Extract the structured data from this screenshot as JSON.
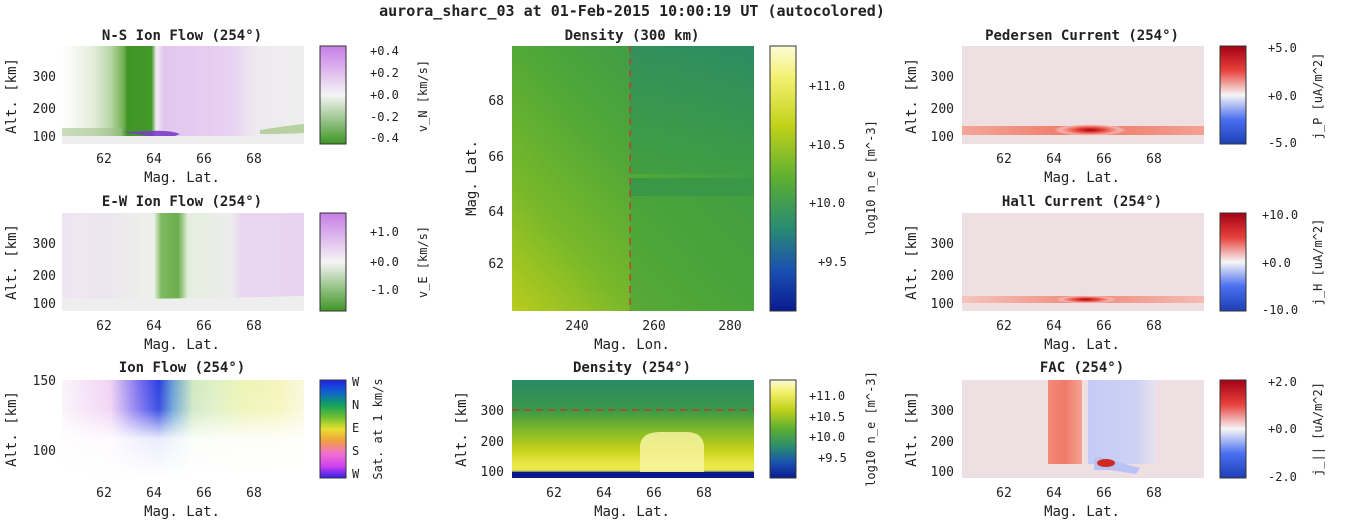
{
  "figure_title": "aurora_sharc_03 at 01-Feb-2015 10:00:19 UT (autocolored)",
  "colors": {
    "purple": "#c77de6",
    "green": "#3f9524",
    "red": "#a50015",
    "blue": "#1d3fb5",
    "yellow": "#f7f5b5"
  },
  "panels": {
    "ns_flow": {
      "title": "N-S Ion Flow (254°)",
      "xlabel": "Mag. Lat.",
      "ylabel": "Alt. [km]",
      "xticks": [
        "62",
        "64",
        "66",
        "68"
      ],
      "yticks": [
        "300",
        "200",
        "100"
      ],
      "cb_ticks": [
        "+0.4",
        "+0.2",
        "+0.0",
        "-0.2",
        "-0.4"
      ],
      "cb_label": "v_N [km/s]"
    },
    "ew_flow": {
      "title": "E-W Ion Flow (254°)",
      "xlabel": "Mag. Lat.",
      "ylabel": "Alt. [km]",
      "xticks": [
        "62",
        "64",
        "66",
        "68"
      ],
      "yticks": [
        "300",
        "200",
        "100"
      ],
      "cb_ticks": [
        "+1.0",
        "+0.0",
        "-1.0"
      ],
      "cb_label": "v_E [km/s]"
    },
    "ion_flow": {
      "title": "Ion Flow (254°)",
      "xlabel": "Mag. Lat.",
      "ylabel": "Alt. [km]",
      "xticks": [
        "62",
        "64",
        "66",
        "68"
      ],
      "yticks": [
        "150",
        "100"
      ],
      "cb_ticks": [
        "W",
        "N",
        "E",
        "S",
        "W"
      ],
      "cb_label": "Sat. at 1 km/s"
    },
    "density_map": {
      "title": "Density (300 km)",
      "xlabel": "Mag. Lon.",
      "ylabel": "Mag. Lat.",
      "xticks": [
        "240",
        "260",
        "280"
      ],
      "yticks": [
        "68",
        "66",
        "64",
        "62"
      ],
      "cb_ticks": [
        "+11.0",
        "+10.5",
        "+10.0",
        "+9.5"
      ],
      "cb_label": "log10 n_e [m^-3]"
    },
    "density_alt": {
      "title": "Density (254°)",
      "xlabel": "Mag. Lat.",
      "ylabel": "Alt. [km]",
      "xticks": [
        "62",
        "64",
        "66",
        "68"
      ],
      "yticks": [
        "300",
        "200",
        "100"
      ],
      "cb_ticks": [
        "+11.0",
        "+10.5",
        "+10.0",
        "+9.5"
      ],
      "cb_label": "log10 n_e [m^-3]"
    },
    "pedersen": {
      "title": "Pedersen Current (254°)",
      "xlabel": "Mag. Lat.",
      "ylabel": "Alt. [km]",
      "xticks": [
        "62",
        "64",
        "66",
        "68"
      ],
      "yticks": [
        "300",
        "200",
        "100"
      ],
      "cb_ticks": [
        "+5.0",
        "+0.0",
        "-5.0"
      ],
      "cb_label": "j_P [uA/m^2]"
    },
    "hall": {
      "title": "Hall Current (254°)",
      "xlabel": "Mag. Lat.",
      "ylabel": "Alt. [km]",
      "xticks": [
        "62",
        "64",
        "66",
        "68"
      ],
      "yticks": [
        "300",
        "200",
        "100"
      ],
      "cb_ticks": [
        "+10.0",
        "+0.0",
        "-10.0"
      ],
      "cb_label": "j_H [uA/m^2]"
    },
    "fac": {
      "title": "FAC (254°)",
      "xlabel": "Mag. Lat.",
      "ylabel": "Alt. [km]",
      "xticks": [
        "62",
        "64",
        "66",
        "68"
      ],
      "yticks": [
        "300",
        "200",
        "100"
      ],
      "cb_ticks": [
        "+2.0",
        "+0.0",
        "-2.0"
      ],
      "cb_label": "j_|| [uA/m^2]"
    }
  },
  "chart_data": [
    {
      "type": "heatmap",
      "title": "N-S Ion Flow (254°)",
      "xlabel": "Mag. Lat.",
      "ylabel": "Alt. [km]",
      "xlim": [
        60.2,
        70.0
      ],
      "ylim": [
        80,
        400
      ],
      "clim": [
        -0.4,
        0.4
      ],
      "colorbar_label": "v_N [km/s]"
    },
    {
      "type": "heatmap",
      "title": "E-W Ion Flow (254°)",
      "xlabel": "Mag. Lat.",
      "ylabel": "Alt. [km]",
      "xlim": [
        60.2,
        70.0
      ],
      "ylim": [
        80,
        400
      ],
      "clim": [
        -1.5,
        1.5
      ],
      "colorbar_label": "v_E [km/s]"
    },
    {
      "type": "heatmap",
      "title": "Ion Flow (254°)",
      "xlabel": "Mag. Lat.",
      "ylabel": "Alt. [km]",
      "xlim": [
        60.2,
        70.0
      ],
      "ylim": [
        80,
        150
      ],
      "colorbar_label": "Sat. at 1 km/s"
    },
    {
      "type": "heatmap",
      "title": "Density (300 km)",
      "xlabel": "Mag. Lon.",
      "ylabel": "Mag. Lat.",
      "xlim": [
        225,
        286
      ],
      "ylim": [
        60.2,
        70.0
      ],
      "clim": [
        9.1,
        11.3
      ],
      "colorbar_label": "log10 n_e [m^-3]",
      "marker_line": {
        "axis": "x",
        "value": 254
      }
    },
    {
      "type": "heatmap",
      "title": "Density (254°)",
      "xlabel": "Mag. Lat.",
      "ylabel": "Alt. [km]",
      "xlim": [
        60.2,
        70.0
      ],
      "ylim": [
        80,
        400
      ],
      "clim": [
        9.1,
        11.3
      ],
      "colorbar_label": "log10 n_e [m^-3]",
      "marker_line": {
        "axis": "y",
        "value": 300
      }
    },
    {
      "type": "heatmap",
      "title": "Pedersen Current (254°)",
      "xlabel": "Mag. Lat.",
      "ylabel": "Alt. [km]",
      "xlim": [
        60.2,
        70.0
      ],
      "ylim": [
        80,
        400
      ],
      "clim": [
        -5.0,
        5.0
      ],
      "colorbar_label": "j_P [uA/m^2]"
    },
    {
      "type": "heatmap",
      "title": "Hall Current (254°)",
      "xlabel": "Mag. Lat.",
      "ylabel": "Alt. [km]",
      "xlim": [
        60.2,
        70.0
      ],
      "ylim": [
        80,
        400
      ],
      "clim": [
        -10.0,
        10.0
      ],
      "colorbar_label": "j_H [uA/m^2]"
    },
    {
      "type": "heatmap",
      "title": "FAC (254°)",
      "xlabel": "Mag. Lat.",
      "ylabel": "Alt. [km]",
      "xlim": [
        60.2,
        70.0
      ],
      "ylim": [
        80,
        400
      ],
      "clim": [
        -2.0,
        2.0
      ],
      "colorbar_label": "j_|| [uA/m^2]"
    }
  ]
}
